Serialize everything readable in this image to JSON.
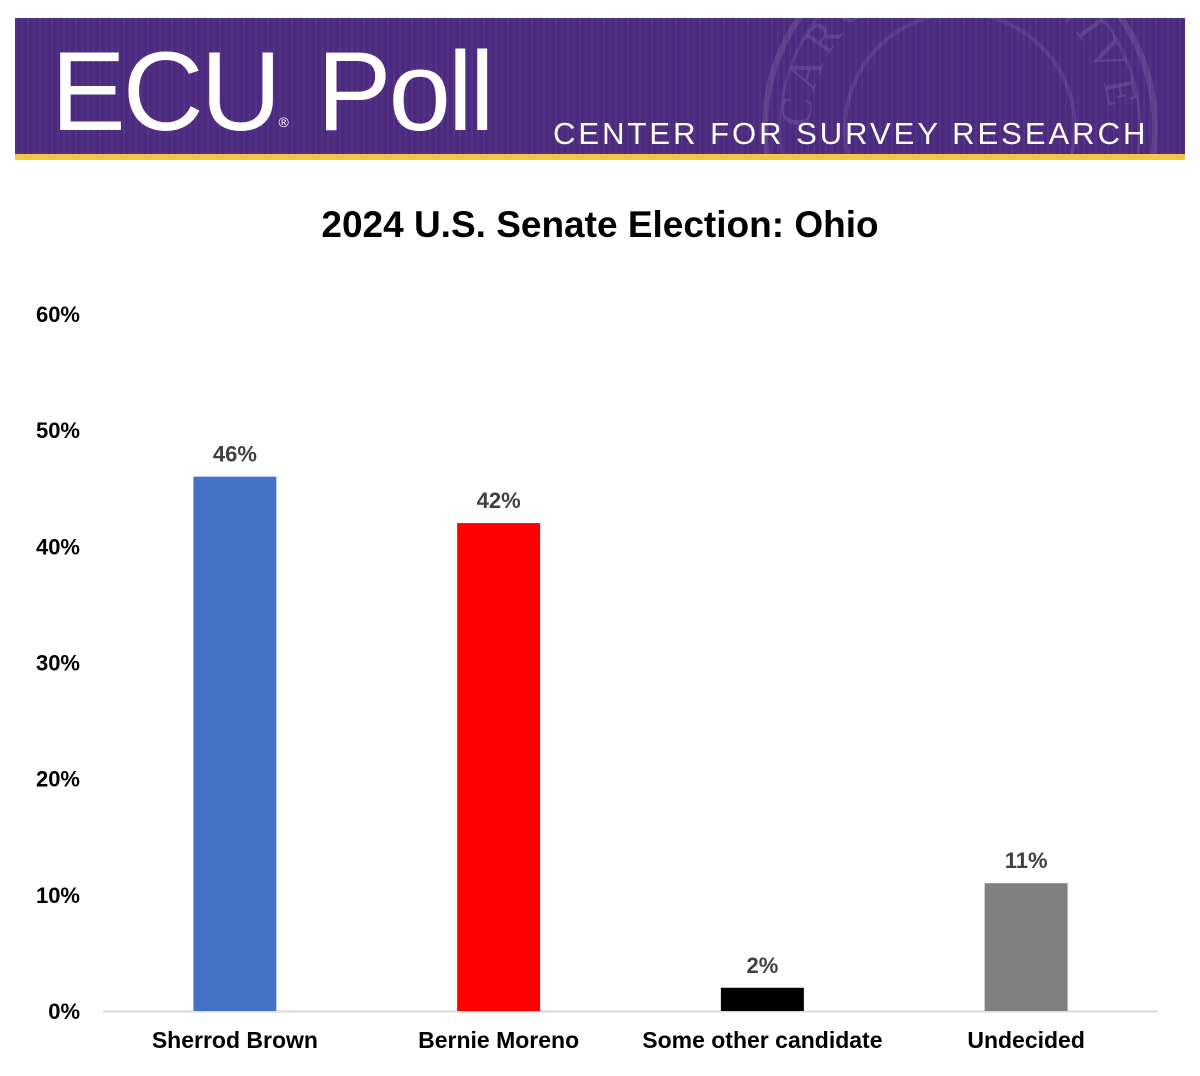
{
  "header": {
    "brand_main": "ECU",
    "brand_reg": "®",
    "brand_poll": " Poll",
    "tagline": "CENTER FOR SURVEY RESEARCH",
    "seal_text": "CAROLINA UNIVERSITY",
    "colors": {
      "banner": "#4b2a7f",
      "gold": "#f2c744"
    }
  },
  "chart_data": {
    "type": "bar",
    "title": "2024 U.S. Senate Election: Ohio",
    "xlabel": "",
    "ylabel": "",
    "categories": [
      "Sherrod Brown",
      "Bernie Moreno",
      "Some other candidate",
      "Undecided"
    ],
    "values": [
      46,
      42,
      2,
      11
    ],
    "value_labels": [
      "46%",
      "42%",
      "2%",
      "11%"
    ],
    "colors": [
      "#4472c4",
      "#ff0000",
      "#000000",
      "#808080"
    ],
    "ylim": [
      0,
      60
    ],
    "yticks": [
      0,
      10,
      20,
      30,
      40,
      50,
      60
    ],
    "ytick_labels": [
      "0%",
      "10%",
      "20%",
      "30%",
      "40%",
      "50%",
      "60%"
    ],
    "grid": false,
    "legend": "none"
  }
}
